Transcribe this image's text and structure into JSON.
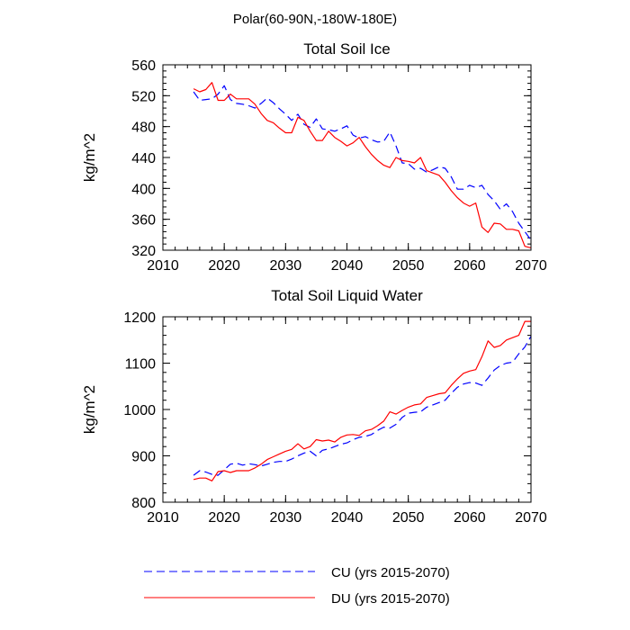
{
  "figure_title": "Polar(60-90N,-180W-180E)",
  "legend": [
    {
      "label": "CU (yrs 2015-2070)",
      "color": "#0000ff",
      "dash": "dashed"
    },
    {
      "label": "DU (yrs 2015-2070)",
      "color": "#ff0000",
      "dash": "solid"
    }
  ],
  "chart_data": [
    {
      "type": "line",
      "title": "Total Soil Ice",
      "xlabel": "",
      "ylabel": "kg/m^2",
      "xlim": [
        2010,
        2070
      ],
      "ylim": [
        320,
        560
      ],
      "xticks": [
        "2010",
        "2020",
        "2030",
        "2040",
        "2050",
        "2060",
        "2070"
      ],
      "yticks": [
        "320",
        "360",
        "400",
        "440",
        "480",
        "520",
        "560"
      ],
      "x": [
        2015,
        2016,
        2017,
        2018,
        2019,
        2020,
        2021,
        2022,
        2023,
        2024,
        2025,
        2026,
        2027,
        2028,
        2029,
        2030,
        2031,
        2032,
        2033,
        2034,
        2035,
        2036,
        2037,
        2038,
        2039,
        2040,
        2041,
        2042,
        2043,
        2044,
        2045,
        2046,
        2047,
        2048,
        2049,
        2050,
        2051,
        2052,
        2053,
        2054,
        2055,
        2056,
        2057,
        2058,
        2059,
        2060,
        2061,
        2062,
        2063,
        2064,
        2065,
        2066,
        2067,
        2068,
        2069,
        2070
      ],
      "series": [
        {
          "name": "CU (yrs 2015-2070)",
          "color": "#0000ff",
          "dash": "dashed",
          "values": [
            525,
            514,
            515,
            516,
            522,
            533,
            515,
            510,
            509,
            507,
            504,
            510,
            517,
            511,
            503,
            496,
            488,
            496,
            483,
            479,
            490,
            477,
            476,
            474,
            477,
            481,
            469,
            465,
            467,
            463,
            460,
            461,
            473,
            455,
            433,
            432,
            425,
            426,
            421,
            424,
            428,
            426,
            415,
            399,
            399,
            404,
            401,
            404,
            392,
            384,
            373,
            380,
            370,
            355,
            344,
            333
          ]
        },
        {
          "name": "DU (yrs 2015-2070)",
          "color": "#ff0000",
          "dash": "solid",
          "values": [
            529,
            525,
            528,
            537,
            514,
            514,
            522,
            516,
            516,
            516,
            509,
            497,
            488,
            485,
            478,
            472,
            472,
            492,
            488,
            474,
            462,
            462,
            474,
            466,
            461,
            455,
            459,
            466,
            454,
            444,
            436,
            430,
            427,
            440,
            436,
            435,
            433,
            440,
            423,
            420,
            417,
            408,
            397,
            388,
            381,
            377,
            381,
            350,
            343,
            355,
            354,
            347,
            347,
            345,
            325,
            323
          ]
        }
      ]
    },
    {
      "type": "line",
      "title": "Total Soil Liquid Water",
      "xlabel": "",
      "ylabel": "kg/m^2",
      "xlim": [
        2010,
        2070
      ],
      "ylim": [
        800,
        1200
      ],
      "xticks": [
        "2010",
        "2020",
        "2030",
        "2040",
        "2050",
        "2060",
        "2070"
      ],
      "yticks": [
        "800",
        "900",
        "1000",
        "1100",
        "1200"
      ],
      "x": [
        2015,
        2016,
        2017,
        2018,
        2019,
        2020,
        2021,
        2022,
        2023,
        2024,
        2025,
        2026,
        2027,
        2028,
        2029,
        2030,
        2031,
        2032,
        2033,
        2034,
        2035,
        2036,
        2037,
        2038,
        2039,
        2040,
        2041,
        2042,
        2043,
        2044,
        2045,
        2046,
        2047,
        2048,
        2049,
        2050,
        2051,
        2052,
        2053,
        2054,
        2055,
        2056,
        2057,
        2058,
        2059,
        2060,
        2061,
        2062,
        2063,
        2064,
        2065,
        2066,
        2067,
        2068,
        2069,
        2070
      ],
      "series": [
        {
          "name": "CU (yrs 2015-2070)",
          "color": "#0000ff",
          "dash": "dashed",
          "values": [
            858,
            868,
            865,
            860,
            858,
            870,
            882,
            884,
            880,
            883,
            881,
            878,
            882,
            886,
            888,
            888,
            893,
            900,
            906,
            910,
            900,
            912,
            915,
            920,
            925,
            928,
            935,
            940,
            942,
            946,
            955,
            962,
            960,
            968,
            983,
            992,
            994,
            995,
            1005,
            1010,
            1015,
            1020,
            1035,
            1048,
            1055,
            1058,
            1057,
            1052,
            1068,
            1085,
            1095,
            1100,
            1102,
            1120,
            1135,
            1158
          ]
        },
        {
          "name": "DU (yrs 2015-2070)",
          "color": "#ff0000",
          "dash": "solid",
          "values": [
            849,
            852,
            852,
            846,
            866,
            868,
            864,
            868,
            868,
            868,
            874,
            882,
            892,
            898,
            904,
            910,
            914,
            926,
            915,
            920,
            935,
            932,
            934,
            930,
            940,
            945,
            946,
            944,
            954,
            957,
            965,
            975,
            995,
            990,
            998,
            1005,
            1010,
            1012,
            1026,
            1030,
            1034,
            1036,
            1052,
            1066,
            1078,
            1083,
            1086,
            1114,
            1148,
            1134,
            1138,
            1150,
            1155,
            1160,
            1190,
            1190
          ]
        }
      ]
    }
  ]
}
